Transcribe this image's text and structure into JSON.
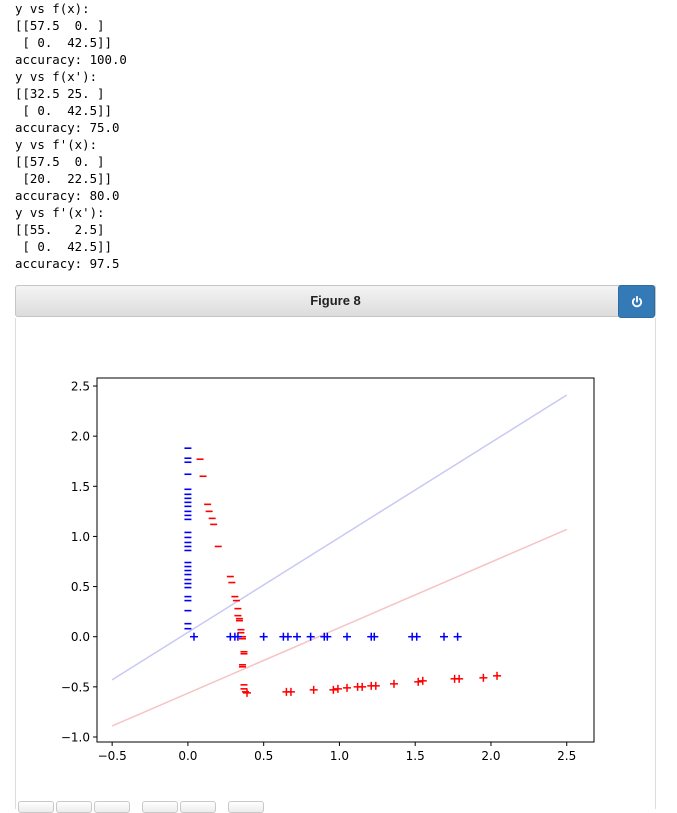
{
  "console_lines": [
    "y vs f(x):",
    "[[57.5  0. ]",
    " [ 0.  42.5]]",
    "accuracy: 100.0",
    "y vs f(x'):",
    "[[32.5 25. ]",
    " [ 0.  42.5]]",
    "accuracy: 75.0",
    "y vs f'(x):",
    "[[57.5  0. ]",
    " [20.  22.5]]",
    "accuracy: 80.0",
    "y vs f'(x'):",
    "[[55.   2.5]",
    " [ 0.  42.5]]",
    "accuracy: 97.5"
  ],
  "figure": {
    "title": "Figure 8",
    "power_icon": "power-icon",
    "accent_color": "#337ab7"
  },
  "toolbar": {
    "buttons": [
      "home-icon",
      "back-icon",
      "forward-icon",
      "pan-icon",
      "zoom-icon",
      "save-icon"
    ]
  },
  "chart_data": {
    "type": "scatter",
    "title": "",
    "xlabel": "",
    "ylabel": "",
    "xlim": [
      -0.6,
      2.68
    ],
    "ylim": [
      -1.05,
      2.58
    ],
    "xticks": [
      "−0.5",
      "0.0",
      "0.5",
      "1.0",
      "1.5",
      "2.0",
      "2.5"
    ],
    "xtick_values": [
      -0.5,
      0.0,
      0.5,
      1.0,
      1.5,
      2.0,
      2.5
    ],
    "yticks": [
      "2.5",
      "2.0",
      "1.5",
      "1.0",
      "0.5",
      "0.0",
      "−0.5",
      "−1.0"
    ],
    "ytick_values": [
      2.5,
      2.0,
      1.5,
      1.0,
      0.5,
      0.0,
      -0.5,
      -1.0
    ],
    "grid": false,
    "lines": [
      {
        "color": "#c8c8f4",
        "x": [
          -0.5,
          2.5
        ],
        "y": [
          -0.43,
          2.41
        ]
      },
      {
        "color": "#f6c4c4",
        "x": [
          -0.5,
          2.5
        ],
        "y": [
          -0.89,
          1.07
        ]
      }
    ],
    "series": [
      {
        "color": "#0000ff",
        "marker": "minus",
        "x": [
          0.0,
          0.0,
          0.0,
          0.0,
          0.0,
          0.0,
          0.0,
          0.0,
          0.0,
          0.0,
          0.0,
          0.0,
          0.0,
          0.0,
          0.0,
          0.0,
          0.0,
          0.0,
          0.0,
          0.0,
          0.0,
          0.0,
          0.0,
          0.0,
          0.0,
          0.0,
          0.0,
          0.0,
          0.0
        ],
        "y": [
          1.88,
          1.78,
          1.74,
          1.62,
          1.47,
          1.42,
          1.38,
          1.34,
          1.3,
          1.25,
          1.21,
          1.17,
          1.04,
          0.99,
          0.94,
          0.9,
          0.86,
          0.74,
          0.7,
          0.66,
          0.62,
          0.57,
          0.53,
          0.49,
          0.4,
          0.36,
          0.26,
          0.13,
          0.08
        ]
      },
      {
        "color": "#ff0000",
        "marker": "minus",
        "x": [
          0.08,
          0.1,
          0.13,
          0.14,
          0.16,
          0.17,
          0.2,
          0.28,
          0.29,
          0.31,
          0.32,
          0.33,
          0.33,
          0.34,
          0.34,
          0.35,
          0.35,
          0.36,
          0.36,
          0.37,
          0.37,
          0.36,
          0.36,
          0.37,
          0.37,
          0.38
        ],
        "y": [
          1.77,
          1.6,
          1.32,
          1.25,
          1.18,
          1.12,
          0.9,
          0.6,
          0.54,
          0.4,
          0.36,
          0.28,
          0.21,
          0.18,
          0.16,
          0.07,
          0.04,
          0.0,
          -0.02,
          -0.15,
          -0.17,
          -0.28,
          -0.3,
          -0.48,
          -0.52,
          -0.55
        ]
      },
      {
        "color": "#0000ff",
        "marker": "plus",
        "x": [
          0.04,
          0.28,
          0.31,
          0.33,
          0.5,
          0.63,
          0.66,
          0.72,
          0.81,
          0.9,
          0.92,
          1.05,
          1.21,
          1.23,
          1.48,
          1.51,
          1.69,
          1.78
        ],
        "y": [
          0,
          0,
          0,
          0,
          0,
          0,
          0,
          0,
          0,
          0,
          0,
          0,
          0,
          0,
          0,
          0,
          0,
          0
        ]
      },
      {
        "color": "#ff0000",
        "marker": "plus",
        "x": [
          0.39,
          0.65,
          0.68,
          0.83,
          0.96,
          0.99,
          1.05,
          1.12,
          1.15,
          1.21,
          1.24,
          1.36,
          1.52,
          1.55,
          1.76,
          1.79,
          1.95,
          2.04
        ],
        "y": [
          -0.56,
          -0.55,
          -0.55,
          -0.53,
          -0.53,
          -0.52,
          -0.51,
          -0.5,
          -0.5,
          -0.49,
          -0.49,
          -0.47,
          -0.45,
          -0.44,
          -0.42,
          -0.42,
          -0.41,
          -0.39
        ]
      }
    ]
  }
}
